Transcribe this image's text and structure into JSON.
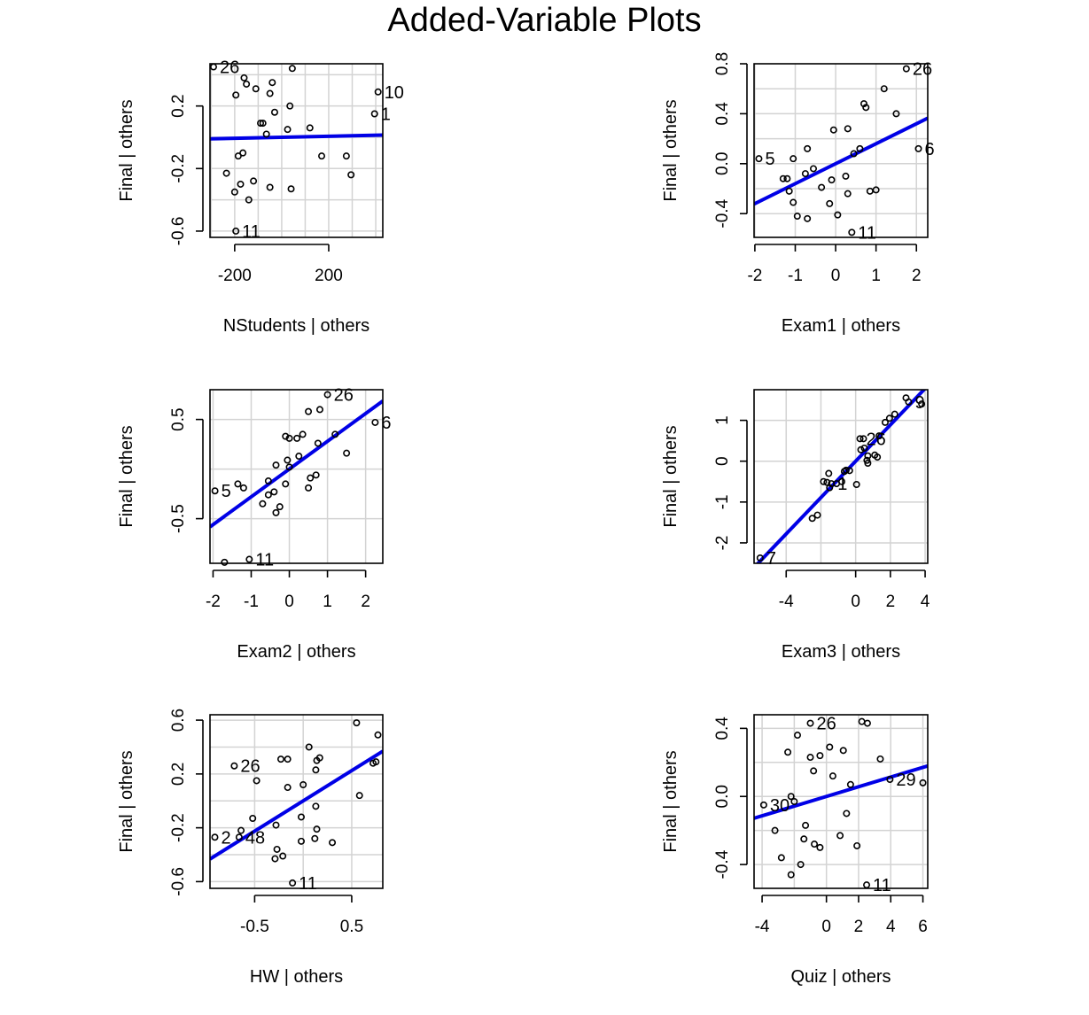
{
  "title": "Added-Variable Plots",
  "style": {
    "point_color": "#000000",
    "line_color": "#0000e6",
    "grid_color": "#d3d3d3"
  },
  "chart_data": [
    {
      "type": "scatter",
      "xlabel": "NStudents | others",
      "ylabel": "Final  | others",
      "xlim": [
        -305,
        430
      ],
      "ylim": [
        -0.64,
        0.47
      ],
      "xticks": [
        -200,
        200
      ],
      "xtick_labels": [
        "-200",
        "200"
      ],
      "yticks": [
        -0.6,
        -0.2,
        0.2
      ],
      "ytick_labels": [
        "-0.6",
        "-0.2",
        "0.2"
      ],
      "xgrid": [
        -300,
        -200,
        -100,
        0,
        100,
        200,
        300,
        400
      ],
      "ygrid": [
        -0.6,
        -0.4,
        -0.2,
        0,
        0.2,
        0.4
      ],
      "grid": true,
      "fit_line": {
        "intercept": 0.0,
        "slope": 3.3e-05
      },
      "points": [
        {
          "x": -290,
          "y": 0.45,
          "label": "26"
        },
        {
          "x": -195,
          "y": -0.6,
          "label": "11"
        },
        {
          "x": 410,
          "y": 0.29,
          "label": "10"
        },
        {
          "x": 395,
          "y": 0.15,
          "label": "1"
        },
        {
          "x": -160,
          "y": 0.38
        },
        {
          "x": -150,
          "y": 0.34
        },
        {
          "x": -195,
          "y": 0.27
        },
        {
          "x": -110,
          "y": 0.31
        },
        {
          "x": -50,
          "y": 0.28
        },
        {
          "x": -40,
          "y": 0.35
        },
        {
          "x": -30,
          "y": 0.16
        },
        {
          "x": 45,
          "y": 0.44
        },
        {
          "x": 35,
          "y": 0.2
        },
        {
          "x": -90,
          "y": 0.09
        },
        {
          "x": -80,
          "y": 0.09
        },
        {
          "x": -65,
          "y": 0.02
        },
        {
          "x": 25,
          "y": 0.05
        },
        {
          "x": 120,
          "y": 0.06
        },
        {
          "x": -235,
          "y": -0.23
        },
        {
          "x": -185,
          "y": -0.12
        },
        {
          "x": -165,
          "y": -0.1
        },
        {
          "x": -175,
          "y": -0.3
        },
        {
          "x": -120,
          "y": -0.28
        },
        {
          "x": -140,
          "y": -0.4
        },
        {
          "x": -200,
          "y": -0.35
        },
        {
          "x": -50,
          "y": -0.32
        },
        {
          "x": 40,
          "y": -0.33
        },
        {
          "x": 170,
          "y": -0.12
        },
        {
          "x": 275,
          "y": -0.12
        },
        {
          "x": 295,
          "y": -0.24
        }
      ]
    },
    {
      "type": "scatter",
      "xlabel": "Exam1 | others",
      "ylabel": "Final  | others",
      "xlim": [
        -2.02,
        2.28
      ],
      "ylim": [
        -0.59,
        0.8
      ],
      "xticks": [
        -2,
        -1,
        0,
        1,
        2
      ],
      "xtick_labels": [
        "-2",
        "-1",
        "0",
        "1",
        "2"
      ],
      "yticks": [
        -0.4,
        0.0,
        0.4,
        0.8
      ],
      "ytick_labels": [
        "-0.4",
        "0.0",
        "0.4",
        "0.8"
      ],
      "xgrid": [
        -2,
        -1,
        0,
        1,
        2
      ],
      "ygrid": [
        -0.4,
        -0.2,
        0,
        0.2,
        0.4,
        0.6,
        0.8
      ],
      "grid": true,
      "fit_line": {
        "intercept": 0.0,
        "slope": 0.16
      },
      "points": [
        {
          "x": 1.75,
          "y": 0.76,
          "label": "26"
        },
        {
          "x": -1.9,
          "y": 0.04,
          "label": "5"
        },
        {
          "x": 2.05,
          "y": 0.12,
          "label": "6"
        },
        {
          "x": 0.4,
          "y": -0.55,
          "label": "11"
        },
        {
          "x": 1.2,
          "y": 0.6
        },
        {
          "x": 0.7,
          "y": 0.48
        },
        {
          "x": 0.75,
          "y": 0.45
        },
        {
          "x": 1.5,
          "y": 0.4
        },
        {
          "x": -0.05,
          "y": 0.27
        },
        {
          "x": 0.3,
          "y": 0.28
        },
        {
          "x": -0.7,
          "y": 0.12
        },
        {
          "x": 0.6,
          "y": 0.12
        },
        {
          "x": 0.45,
          "y": 0.08
        },
        {
          "x": -1.05,
          "y": 0.04
        },
        {
          "x": -0.55,
          "y": -0.04
        },
        {
          "x": -0.75,
          "y": -0.08
        },
        {
          "x": 0.25,
          "y": -0.1
        },
        {
          "x": -1.3,
          "y": -0.12
        },
        {
          "x": -1.2,
          "y": -0.12
        },
        {
          "x": -0.1,
          "y": -0.13
        },
        {
          "x": -0.35,
          "y": -0.19
        },
        {
          "x": -1.15,
          "y": -0.22
        },
        {
          "x": 0.3,
          "y": -0.24
        },
        {
          "x": 0.85,
          "y": -0.22
        },
        {
          "x": 1.0,
          "y": -0.21
        },
        {
          "x": -1.05,
          "y": -0.31
        },
        {
          "x": -0.15,
          "y": -0.32
        },
        {
          "x": -0.95,
          "y": -0.42
        },
        {
          "x": -0.7,
          "y": -0.44
        },
        {
          "x": 0.05,
          "y": -0.41
        }
      ]
    },
    {
      "type": "scatter",
      "xlabel": "Exam2 | others",
      "ylabel": "Final  | others",
      "xlim": [
        -2.08,
        2.45
      ],
      "ylim": [
        -0.95,
        0.8
      ],
      "xticks": [
        -2,
        -1,
        0,
        1,
        2
      ],
      "xtick_labels": [
        "-2",
        "-1",
        "0",
        "1",
        "2"
      ],
      "yticks": [
        -0.5,
        0.5
      ],
      "ytick_labels": [
        "-0.5",
        "0.5"
      ],
      "xgrid": [
        -2,
        -1,
        0,
        1,
        2
      ],
      "ygrid": [
        -0.5,
        0,
        0.5
      ],
      "grid": true,
      "fit_line": {
        "intercept": 0.0,
        "slope": 0.28
      },
      "points": [
        {
          "x": 1.0,
          "y": 0.75,
          "label": "26"
        },
        {
          "x": -1.95,
          "y": -0.22,
          "label": "5"
        },
        {
          "x": 2.25,
          "y": 0.47,
          "label": "6"
        },
        {
          "x": -1.05,
          "y": -0.91,
          "label": "11"
        },
        {
          "x": -1.7,
          "y": -0.94
        },
        {
          "x": 0.5,
          "y": 0.58
        },
        {
          "x": 0.8,
          "y": 0.6
        },
        {
          "x": 1.2,
          "y": 0.35
        },
        {
          "x": 1.5,
          "y": 0.16
        },
        {
          "x": 0.35,
          "y": 0.35
        },
        {
          "x": -0.1,
          "y": 0.33
        },
        {
          "x": 0.0,
          "y": 0.31
        },
        {
          "x": 0.2,
          "y": 0.31
        },
        {
          "x": 0.75,
          "y": 0.26
        },
        {
          "x": -0.05,
          "y": 0.09
        },
        {
          "x": 0.25,
          "y": 0.13
        },
        {
          "x": -0.35,
          "y": 0.04
        },
        {
          "x": 0.0,
          "y": 0.02
        },
        {
          "x": -0.55,
          "y": -0.12
        },
        {
          "x": 0.7,
          "y": -0.06
        },
        {
          "x": 0.55,
          "y": -0.09
        },
        {
          "x": 0.5,
          "y": -0.19
        },
        {
          "x": -1.35,
          "y": -0.15
        },
        {
          "x": -1.2,
          "y": -0.19
        },
        {
          "x": -0.4,
          "y": -0.23
        },
        {
          "x": -0.55,
          "y": -0.26
        },
        {
          "x": -0.7,
          "y": -0.35
        },
        {
          "x": -0.25,
          "y": -0.38
        },
        {
          "x": -0.35,
          "y": -0.44
        },
        {
          "x": -0.1,
          "y": -0.15
        }
      ]
    },
    {
      "type": "scatter",
      "xlabel": "Exam3 | others",
      "ylabel": "Final  | others",
      "xlim": [
        -5.85,
        4.15
      ],
      "ylim": [
        -2.5,
        1.75
      ],
      "xticks": [
        -4,
        0,
        2,
        4
      ],
      "xtick_labels": [
        "-4",
        "0",
        "2",
        "4"
      ],
      "yticks": [
        -2,
        -1,
        0,
        1
      ],
      "ytick_labels": [
        "-2",
        "-1",
        "0",
        "1"
      ],
      "xgrid": [
        -4,
        -2,
        0,
        2,
        4
      ],
      "ygrid": [
        -2,
        -1,
        0,
        1
      ],
      "grid": true,
      "fit_line": {
        "intercept": 0.0,
        "slope": 0.445
      },
      "points": [
        {
          "x": -5.5,
          "y": -2.37,
          "label": "7"
        },
        {
          "x": 0.25,
          "y": 0.55,
          "label": "26"
        },
        {
          "x": 3.05,
          "y": 1.45,
          "label": "9"
        },
        {
          "x": -1.4,
          "y": -0.55,
          "label": "1"
        },
        {
          "x": 3.8,
          "y": 1.4
        },
        {
          "x": 2.9,
          "y": 1.55
        },
        {
          "x": 2.25,
          "y": 1.15
        },
        {
          "x": 1.95,
          "y": 1.05
        },
        {
          "x": 1.7,
          "y": 0.95
        },
        {
          "x": 1.35,
          "y": 0.62
        },
        {
          "x": 0.45,
          "y": 0.55
        },
        {
          "x": 0.5,
          "y": 0.32
        },
        {
          "x": 0.3,
          "y": 0.28
        },
        {
          "x": 0.7,
          "y": 0.13
        },
        {
          "x": 1.1,
          "y": 0.15
        },
        {
          "x": 1.25,
          "y": 0.1
        },
        {
          "x": 0.65,
          "y": 0.02
        },
        {
          "x": 0.7,
          "y": -0.05
        },
        {
          "x": -0.55,
          "y": -0.22
        },
        {
          "x": -0.65,
          "y": -0.25
        },
        {
          "x": -1.55,
          "y": -0.3
        },
        {
          "x": -1.85,
          "y": -0.5
        },
        {
          "x": -1.65,
          "y": -0.52
        },
        {
          "x": -1.1,
          "y": -0.55
        },
        {
          "x": -0.8,
          "y": -0.5
        },
        {
          "x": -1.5,
          "y": -0.65
        },
        {
          "x": 0.05,
          "y": -0.57
        },
        {
          "x": -2.5,
          "y": -1.4
        },
        {
          "x": -2.2,
          "y": -1.32
        },
        {
          "x": -0.35,
          "y": -0.23
        }
      ]
    },
    {
      "type": "scatter",
      "xlabel": "HW | others",
      "ylabel": "Final  | others",
      "xlim": [
        -0.96,
        0.82
      ],
      "ylim": [
        -0.65,
        0.64
      ],
      "xticks": [
        -0.5,
        0.5
      ],
      "xtick_labels": [
        "-0.5",
        "0.5"
      ],
      "yticks": [
        -0.6,
        -0.2,
        0.2,
        0.6
      ],
      "ytick_labels": [
        "-0.6",
        "-0.2",
        "0.2",
        "0.6"
      ],
      "xgrid": [
        -1.0,
        -0.5,
        0,
        0.5
      ],
      "ygrid": [
        -0.6,
        -0.4,
        -0.2,
        0,
        0.2,
        0.4,
        0.6
      ],
      "grid": true,
      "fit_line": {
        "intercept": 0.0,
        "slope": 0.45
      },
      "points": [
        {
          "x": -0.71,
          "y": 0.26,
          "label": "26"
        },
        {
          "x": -0.91,
          "y": -0.27,
          "label": "2"
        },
        {
          "x": -0.66,
          "y": -0.27,
          "label": "48"
        },
        {
          "x": -0.11,
          "y": -0.61,
          "label": "11"
        },
        {
          "x": 0.55,
          "y": 0.58
        },
        {
          "x": 0.77,
          "y": 0.49
        },
        {
          "x": 0.06,
          "y": 0.4
        },
        {
          "x": -0.23,
          "y": 0.31
        },
        {
          "x": -0.16,
          "y": 0.31
        },
        {
          "x": 0.17,
          "y": 0.32
        },
        {
          "x": 0.14,
          "y": 0.3
        },
        {
          "x": 0.75,
          "y": 0.29
        },
        {
          "x": 0.72,
          "y": 0.28
        },
        {
          "x": 0.13,
          "y": 0.23
        },
        {
          "x": -0.48,
          "y": 0.15
        },
        {
          "x": -0.16,
          "y": 0.1
        },
        {
          "x": 0.0,
          "y": 0.12
        },
        {
          "x": 0.58,
          "y": 0.04
        },
        {
          "x": 0.13,
          "y": -0.04
        },
        {
          "x": -0.02,
          "y": -0.12
        },
        {
          "x": -0.52,
          "y": -0.13
        },
        {
          "x": -0.28,
          "y": -0.18
        },
        {
          "x": 0.14,
          "y": -0.21
        },
        {
          "x": -0.64,
          "y": -0.22
        },
        {
          "x": 0.12,
          "y": -0.28
        },
        {
          "x": -0.02,
          "y": -0.3
        },
        {
          "x": 0.3,
          "y": -0.31
        },
        {
          "x": -0.27,
          "y": -0.36
        },
        {
          "x": -0.21,
          "y": -0.41
        },
        {
          "x": -0.29,
          "y": -0.43
        }
      ]
    },
    {
      "type": "scatter",
      "xlabel": "Quiz | others",
      "ylabel": "Final  | others",
      "xlim": [
        -4.5,
        6.3
      ],
      "ylim": [
        -0.54,
        0.48
      ],
      "xticks": [
        -4,
        0,
        2,
        4,
        6
      ],
      "xtick_labels": [
        "-4",
        "0",
        "2",
        "4",
        "6"
      ],
      "yticks": [
        -0.4,
        0.0,
        0.4
      ],
      "ytick_labels": [
        "-0.4",
        "0.0",
        "0.4"
      ],
      "xgrid": [
        -4,
        -2,
        0,
        2,
        4,
        6
      ],
      "ygrid": [
        -0.4,
        -0.2,
        0,
        0.2,
        0.4
      ],
      "grid": true,
      "fit_line": {
        "intercept": 0.0,
        "slope": 0.0285
      },
      "points": [
        {
          "x": -1.0,
          "y": 0.43,
          "label": "26"
        },
        {
          "x": -3.9,
          "y": -0.05,
          "label": "30"
        },
        {
          "x": 3.95,
          "y": 0.1,
          "label": "29"
        },
        {
          "x": 2.5,
          "y": -0.52,
          "label": "11"
        },
        {
          "x": 2.2,
          "y": 0.44
        },
        {
          "x": 2.55,
          "y": 0.43
        },
        {
          "x": -1.8,
          "y": 0.36
        },
        {
          "x": 0.2,
          "y": 0.29
        },
        {
          "x": 1.05,
          "y": 0.27
        },
        {
          "x": -2.4,
          "y": 0.26
        },
        {
          "x": -1.0,
          "y": 0.23
        },
        {
          "x": -0.4,
          "y": 0.24
        },
        {
          "x": 3.35,
          "y": 0.22
        },
        {
          "x": -0.8,
          "y": 0.15
        },
        {
          "x": 0.4,
          "y": 0.12
        },
        {
          "x": 1.5,
          "y": 0.07
        },
        {
          "x": 6.0,
          "y": 0.08
        },
        {
          "x": -2.2,
          "y": 0.0
        },
        {
          "x": -2.0,
          "y": -0.03
        },
        {
          "x": 1.25,
          "y": -0.1
        },
        {
          "x": -1.3,
          "y": -0.17
        },
        {
          "x": -3.2,
          "y": -0.2
        },
        {
          "x": 0.85,
          "y": -0.23
        },
        {
          "x": -1.4,
          "y": -0.25
        },
        {
          "x": -0.75,
          "y": -0.28
        },
        {
          "x": -0.4,
          "y": -0.3
        },
        {
          "x": 1.9,
          "y": -0.29
        },
        {
          "x": -2.8,
          "y": -0.36
        },
        {
          "x": -1.6,
          "y": -0.4
        },
        {
          "x": -2.2,
          "y": -0.46
        }
      ]
    }
  ]
}
